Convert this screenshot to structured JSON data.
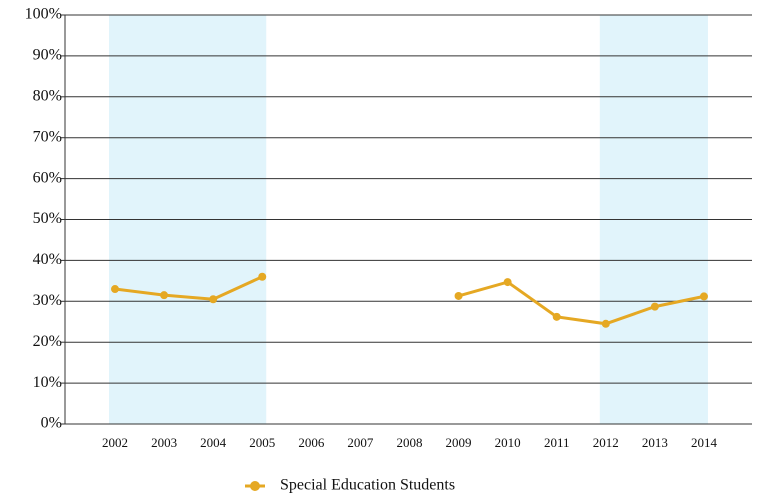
{
  "chart_data": {
    "type": "line",
    "categories": [
      "2002",
      "2003",
      "2004",
      "2005",
      "2006",
      "2007",
      "2008",
      "2009",
      "2010",
      "2011",
      "2012",
      "2013",
      "2014"
    ],
    "series": [
      {
        "name": "Special Education Students",
        "color": "#e5a823",
        "values": [
          33,
          31.5,
          30.5,
          36,
          null,
          null,
          null,
          31.3,
          34.7,
          26.2,
          24.5,
          28.7,
          31.2
        ]
      }
    ],
    "ylim": [
      0,
      100
    ],
    "yticks": [
      {
        "value": 0,
        "label": "0%"
      },
      {
        "value": 10,
        "label": "10%"
      },
      {
        "value": 20,
        "label": "20%"
      },
      {
        "value": 30,
        "label": "30%"
      },
      {
        "value": 40,
        "label": "40%"
      },
      {
        "value": 50,
        "label": "50%"
      },
      {
        "value": 60,
        "label": "60%"
      },
      {
        "value": 70,
        "label": "70%"
      },
      {
        "value": 80,
        "label": "80%"
      },
      {
        "value": 90,
        "label": "90%"
      },
      {
        "value": 100,
        "label": "100%"
      }
    ],
    "grid": true,
    "shaded_ranges": [
      [
        "2002",
        "2005"
      ],
      [
        "2012",
        "2014"
      ]
    ],
    "shade_color": "#e1f4fb",
    "legend": "bottom"
  }
}
